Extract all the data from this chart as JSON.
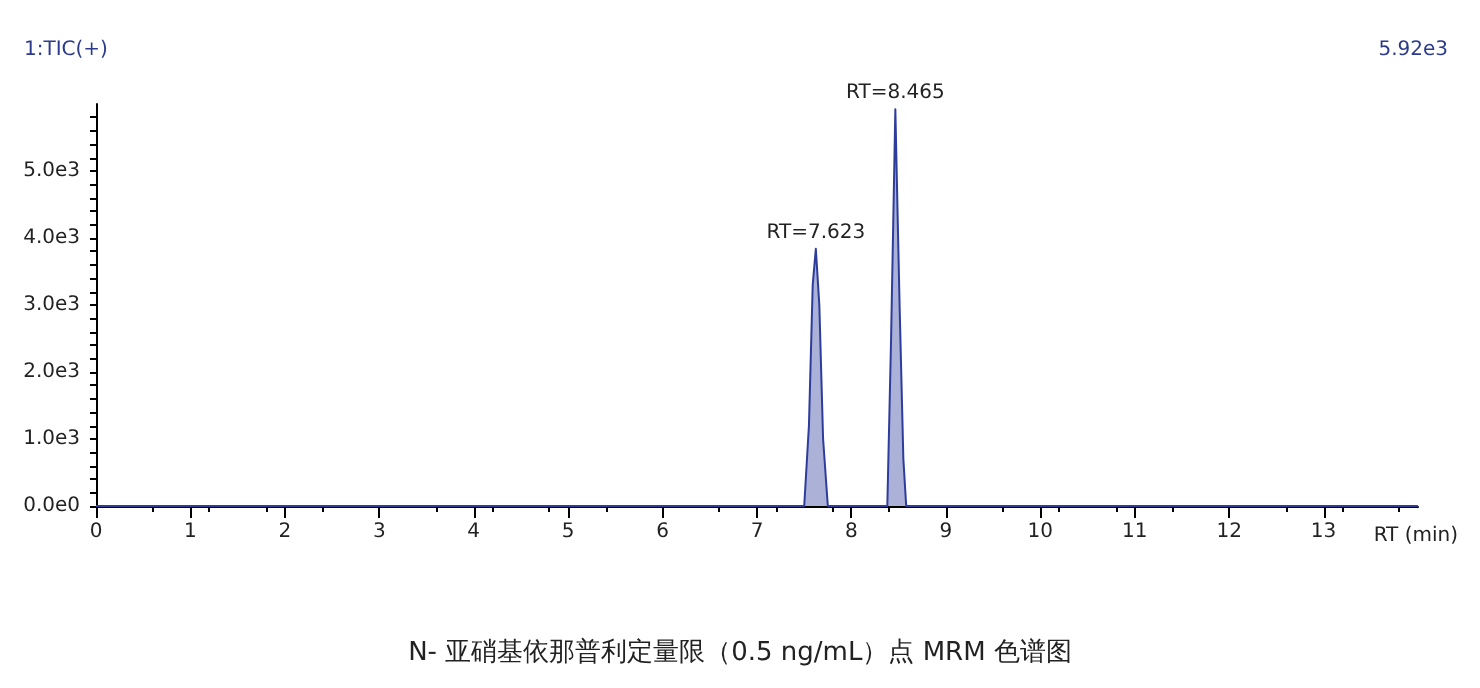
{
  "chart_data": {
    "type": "area",
    "title": "N- 亚硝基依那普利定量限（0.5 ng/mL）点 MRM 色谱图",
    "xlabel": "RT (min)",
    "annotations": [
      "1:TIC(+)",
      "5.92e3",
      {
        "text": "RT=7.623",
        "x": 7.623,
        "y": 3840
      },
      {
        "text": "RT=8.465",
        "x": 8.465,
        "y": 5920
      }
    ],
    "series": [
      {
        "color": "#2e3d9c",
        "x": [
          0,
          7.5,
          7.55,
          7.59,
          7.623,
          7.66,
          7.7,
          7.75,
          8.38,
          8.42,
          8.465,
          8.51,
          8.55,
          8.58,
          14
        ],
        "values": [
          0,
          0,
          1200,
          3300,
          3840,
          3000,
          1000,
          0,
          0,
          2500,
          5920,
          3000,
          700,
          0,
          0
        ]
      }
    ],
    "xlim": [
      0,
      14
    ],
    "xticks": [
      0,
      1,
      2,
      3,
      4,
      5,
      6,
      7,
      8,
      9,
      10,
      11,
      12,
      13
    ],
    "ylim": [
      0,
      6000
    ],
    "yticks": [
      {
        "value": 0,
        "label": "0.0e0"
      },
      {
        "value": 1000,
        "label": "1.0e3"
      },
      {
        "value": 2000,
        "label": "2.0e3"
      },
      {
        "value": 3000,
        "label": "3.0e3"
      },
      {
        "value": 4000,
        "label": "4.0e3"
      },
      {
        "value": 5000,
        "label": "5.0e3"
      }
    ],
    "grid": false,
    "marker": "none"
  }
}
